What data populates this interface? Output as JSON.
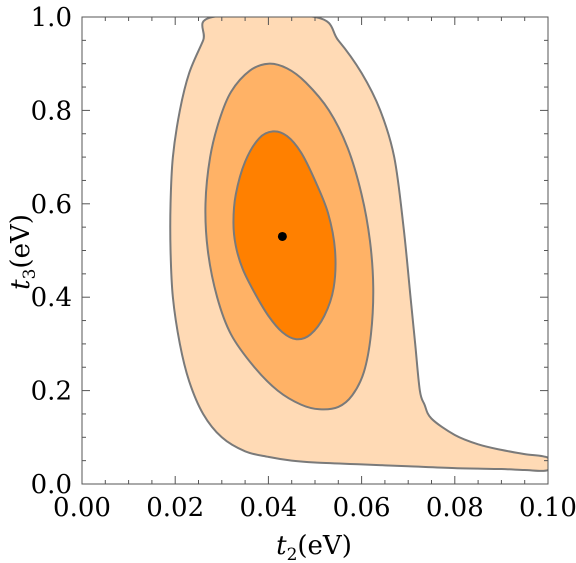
{
  "chart_data": {
    "type": "contour",
    "xlabel": {
      "var": "t",
      "sub": "2",
      "unit": "(eV)"
    },
    "ylabel": {
      "var": "t",
      "sub": "3",
      "unit": "(eV)"
    },
    "xlim": [
      0.0,
      0.1
    ],
    "ylim": [
      0.0,
      1.0
    ],
    "x_ticks": [
      "0.00",
      "0.02",
      "0.04",
      "0.06",
      "0.08",
      "0.10"
    ],
    "y_ticks": [
      "0.0",
      "0.2",
      "0.4",
      "0.6",
      "0.8",
      "1.0"
    ],
    "best_fit": {
      "x": 0.043,
      "y": 0.53
    },
    "colors": {
      "outer_fill": "#FFDAB5",
      "middle_fill": "#FFB266",
      "inner_fill": "#FF8000",
      "contour_line": "#7A7A7A",
      "best_fit_point": "#000000"
    },
    "regions": [
      {
        "level": "outer",
        "points": [
          [
            0.019,
            0.6
          ],
          [
            0.0195,
            0.7
          ],
          [
            0.021,
            0.8
          ],
          [
            0.023,
            0.88
          ],
          [
            0.026,
            0.95
          ],
          [
            0.028,
            1.0
          ],
          [
            0.05,
            1.0
          ],
          [
            0.055,
            0.95
          ],
          [
            0.06,
            0.88
          ],
          [
            0.064,
            0.8
          ],
          [
            0.067,
            0.7
          ],
          [
            0.069,
            0.55
          ],
          [
            0.0705,
            0.4
          ],
          [
            0.0715,
            0.3
          ],
          [
            0.0725,
            0.2
          ],
          [
            0.0735,
            0.17
          ],
          [
            0.075,
            0.14
          ],
          [
            0.08,
            0.105
          ],
          [
            0.085,
            0.085
          ],
          [
            0.09,
            0.073
          ],
          [
            0.095,
            0.064
          ],
          [
            0.1,
            0.056
          ],
          [
            0.1,
            0.03
          ],
          [
            0.095,
            0.03
          ],
          [
            0.09,
            0.032
          ],
          [
            0.08,
            0.034
          ],
          [
            0.07,
            0.038
          ],
          [
            0.06,
            0.042
          ],
          [
            0.05,
            0.046
          ],
          [
            0.045,
            0.05
          ],
          [
            0.04,
            0.058
          ],
          [
            0.035,
            0.07
          ],
          [
            0.03,
            0.1
          ],
          [
            0.026,
            0.15
          ],
          [
            0.023,
            0.22
          ],
          [
            0.021,
            0.3
          ],
          [
            0.0195,
            0.4
          ],
          [
            0.019,
            0.5
          ]
        ]
      },
      {
        "level": "middle",
        "points": [
          [
            0.0265,
            0.6
          ],
          [
            0.0275,
            0.7
          ],
          [
            0.0295,
            0.78
          ],
          [
            0.032,
            0.84
          ],
          [
            0.036,
            0.885
          ],
          [
            0.04,
            0.9
          ],
          [
            0.044,
            0.89
          ],
          [
            0.048,
            0.86
          ],
          [
            0.053,
            0.8
          ],
          [
            0.057,
            0.72
          ],
          [
            0.06,
            0.62
          ],
          [
            0.0618,
            0.52
          ],
          [
            0.0625,
            0.42
          ],
          [
            0.062,
            0.32
          ],
          [
            0.0605,
            0.24
          ],
          [
            0.058,
            0.19
          ],
          [
            0.055,
            0.165
          ],
          [
            0.051,
            0.16
          ],
          [
            0.047,
            0.17
          ],
          [
            0.042,
            0.2
          ],
          [
            0.037,
            0.25
          ],
          [
            0.032,
            0.32
          ],
          [
            0.029,
            0.4
          ],
          [
            0.027,
            0.5
          ]
        ]
      },
      {
        "level": "inner",
        "points": [
          [
            0.0325,
            0.56
          ],
          [
            0.033,
            0.62
          ],
          [
            0.035,
            0.69
          ],
          [
            0.038,
            0.74
          ],
          [
            0.041,
            0.755
          ],
          [
            0.044,
            0.745
          ],
          [
            0.047,
            0.71
          ],
          [
            0.05,
            0.65
          ],
          [
            0.0528,
            0.58
          ],
          [
            0.0543,
            0.5
          ],
          [
            0.054,
            0.42
          ],
          [
            0.052,
            0.36
          ],
          [
            0.049,
            0.32
          ],
          [
            0.046,
            0.31
          ],
          [
            0.043,
            0.325
          ],
          [
            0.04,
            0.36
          ],
          [
            0.037,
            0.41
          ],
          [
            0.0345,
            0.46
          ],
          [
            0.033,
            0.51
          ]
        ]
      }
    ]
  }
}
